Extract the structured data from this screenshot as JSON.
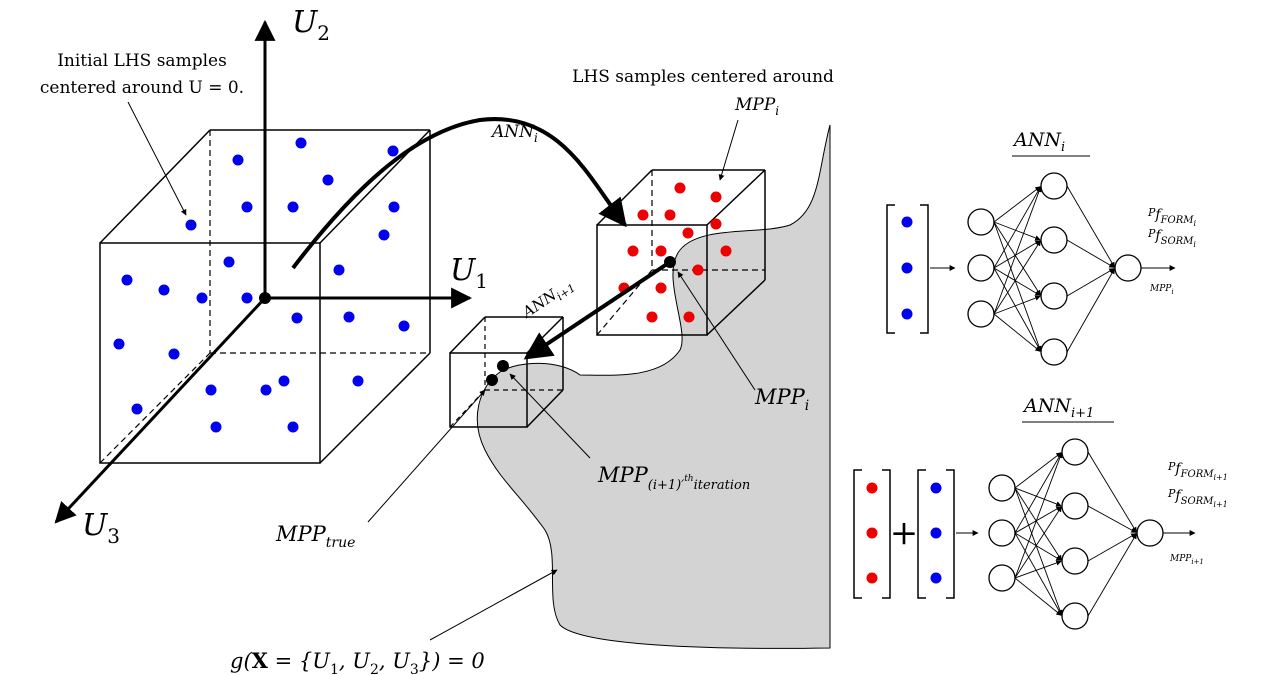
{
  "labels": {
    "u1": "U",
    "u1_sub": "1",
    "u2": "U",
    "u2_sub": "2",
    "u3": "U",
    "u3_sub": "3",
    "initial_line1": "Initial LHS samples",
    "initial_line2": "centered around U = 0.",
    "centered_line1": "LHS samples centered around",
    "mppi_top": "MPP",
    "mppi_top_sub": "i",
    "ann_i_arrow": "ANN",
    "ann_i_arrow_sub": "i",
    "ann_ip1_arrow": "ANN",
    "ann_ip1_arrow_sub": "i+1",
    "mppi_bottom": "MPP",
    "mppi_bottom_sub": "i",
    "mpp_iter": "MPP",
    "mpp_iter_sub": "(i+1)′",
    "mpp_iter_sup": "th",
    "mpp_iter_tail": "iteration",
    "mpp_true": "MPP",
    "mpp_true_sub": "true",
    "limit_state_g": "g(",
    "limit_state_X": "X",
    "limit_state_rest": " = {U",
    "limit_state_s1": "1",
    "limit_state_c1": ", U",
    "limit_state_s2": "2",
    "limit_state_c2": ", U",
    "limit_state_s3": "3",
    "limit_state_end": "}) = 0"
  },
  "network_i": {
    "title": "ANN",
    "title_sub": "i",
    "out_form": "P",
    "out_form_sub": "f",
    "out_form_subsub": "FORM",
    "out_form_idx": "i",
    "out_sorm": "P",
    "out_sorm_sub": "f",
    "out_sorm_subsub": "SORM",
    "out_sorm_idx": "i",
    "out_mpp": "MPP",
    "out_mpp_sub": "i"
  },
  "network_ip1": {
    "title": "ANN",
    "title_sub": "i+1",
    "out_form": "P",
    "out_form_sub": "f",
    "out_form_subsub": "FORM",
    "out_form_idx": "i+1",
    "out_sorm": "P",
    "out_sorm_sub": "f",
    "out_sorm_subsub": "SORM",
    "out_sorm_idx": "i+1",
    "out_mpp": "MPP",
    "out_mpp_sub": "i+1",
    "plus": "+"
  },
  "colors": {
    "initial_samples": "#0000ee",
    "new_samples": "#ee0000",
    "failure_region": "#d3d3d3",
    "lines": "#000000"
  }
}
